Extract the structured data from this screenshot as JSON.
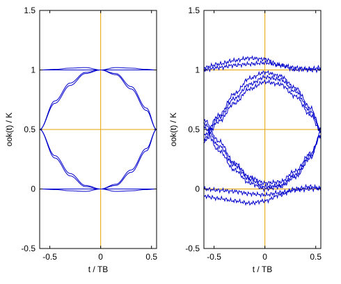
{
  "chart_data": [
    {
      "type": "line",
      "title": "",
      "xlabel": "t / TB",
      "ylabel": "ook(t) / K",
      "xlim": [
        -0.6,
        0.55
      ],
      "ylim": [
        -0.5,
        1.5
      ],
      "xticks": [
        -0.5,
        0,
        0.5
      ],
      "xtick_labels": [
        "-0.5",
        "0",
        "0.5"
      ],
      "yticks": [
        -0.5,
        0,
        0.5,
        1,
        1.5
      ],
      "ytick_labels": [
        "-0.5",
        "0",
        "0.5",
        "1",
        "1.5"
      ],
      "grid": false,
      "reference_lines": {
        "y": [
          0,
          0.5,
          1
        ],
        "x": [
          0
        ]
      },
      "line_color": "#0000cc",
      "reference_color": "#e6a200",
      "series": [
        {
          "x": [
            -0.6,
            -0.45,
            -0.3,
            -0.15,
            0,
            0.15,
            0.3,
            0.45,
            0.55
          ],
          "y": [
            1.0,
            1.005,
            1.015,
            1.02,
            1.0,
            1.02,
            1.015,
            1.005,
            1.0
          ]
        },
        {
          "x": [
            -0.6,
            -0.45,
            -0.3,
            -0.15,
            0,
            0.15,
            0.3,
            0.45,
            0.55
          ],
          "y": [
            1.0,
            1.0,
            1.0,
            1.0,
            1.0,
            1.0,
            1.0,
            1.0,
            1.0
          ]
        },
        {
          "x": [
            -0.6,
            -0.45,
            -0.3,
            -0.15,
            0,
            0.15,
            0.3,
            0.45,
            0.55
          ],
          "y": [
            0.0,
            -0.005,
            -0.015,
            -0.02,
            0.0,
            -0.02,
            -0.015,
            -0.005,
            0.0
          ]
        },
        {
          "x": [
            -0.6,
            -0.45,
            -0.3,
            -0.15,
            0,
            0.15,
            0.3,
            0.45,
            0.55
          ],
          "y": [
            0.0,
            0.0,
            0.0,
            0.0,
            0.0,
            0.0,
            0.0,
            0.0,
            0.0
          ]
        },
        {
          "x": [
            -0.6,
            -0.45,
            -0.3,
            -0.15,
            0,
            0.15,
            0.3,
            0.45,
            0.55
          ],
          "y": [
            0.5,
            0.72,
            0.87,
            0.97,
            1.0,
            0.96,
            0.84,
            0.66,
            0.5
          ]
        },
        {
          "x": [
            -0.6,
            -0.45,
            -0.3,
            -0.15,
            0,
            0.15,
            0.3,
            0.45,
            0.55
          ],
          "y": [
            0.5,
            0.74,
            0.89,
            0.98,
            1.0,
            0.97,
            0.86,
            0.68,
            0.5
          ]
        },
        {
          "x": [
            -0.6,
            -0.45,
            -0.3,
            -0.15,
            0,
            0.15,
            0.3,
            0.45,
            0.55
          ],
          "y": [
            0.5,
            0.28,
            0.13,
            0.03,
            0.0,
            0.04,
            0.16,
            0.34,
            0.5
          ]
        },
        {
          "x": [
            -0.6,
            -0.45,
            -0.3,
            -0.15,
            0,
            0.15,
            0.3,
            0.45,
            0.55
          ],
          "y": [
            0.5,
            0.26,
            0.11,
            0.02,
            0.0,
            0.03,
            0.14,
            0.32,
            0.5
          ]
        }
      ]
    },
    {
      "type": "line",
      "title": "",
      "xlabel": "t / TB",
      "ylabel": "ook(t) / K",
      "xlim": [
        -0.6,
        0.55
      ],
      "ylim": [
        -0.5,
        1.5
      ],
      "xticks": [
        -0.5,
        0,
        0.5
      ],
      "xtick_labels": [
        "-0.5",
        "0",
        "0.5"
      ],
      "yticks": [
        -0.5,
        0,
        0.5,
        1,
        1.5
      ],
      "ytick_labels": [
        "-0.5",
        "0",
        "0.5",
        "1",
        "1.5"
      ],
      "grid": false,
      "reference_lines": {
        "y": [
          0,
          0.5,
          1
        ],
        "x": [
          0
        ]
      },
      "line_color": "#0000cc",
      "reference_color": "#e6a200",
      "series": [
        {
          "x": [
            -0.6,
            -0.45,
            -0.3,
            -0.15,
            0,
            0.15,
            0.3,
            0.45,
            0.55
          ],
          "y": [
            1.02,
            1.05,
            1.08,
            1.1,
            1.09,
            1.04,
            1.0,
            1.01,
            1.02
          ]
        },
        {
          "x": [
            -0.6,
            -0.45,
            -0.3,
            -0.15,
            0,
            0.15,
            0.3,
            0.45,
            0.55
          ],
          "y": [
            1.0,
            1.02,
            1.04,
            1.05,
            1.06,
            1.04,
            1.02,
            1.0,
            1.0
          ]
        },
        {
          "x": [
            -0.6,
            -0.45,
            -0.3,
            -0.15,
            0,
            0.15,
            0.3,
            0.45,
            0.55
          ],
          "y": [
            -0.06,
            -0.08,
            -0.1,
            -0.12,
            -0.1,
            -0.05,
            0.0,
            0.02,
            0.0
          ]
        },
        {
          "x": [
            -0.6,
            -0.45,
            -0.3,
            -0.15,
            0,
            0.15,
            0.3,
            0.45,
            0.55
          ],
          "y": [
            0.0,
            -0.01,
            -0.02,
            -0.04,
            -0.05,
            -0.03,
            -0.01,
            0.0,
            0.01
          ]
        },
        {
          "x": [
            -0.6,
            -0.45,
            -0.3,
            -0.15,
            0,
            0.15,
            0.3,
            0.45,
            0.55
          ],
          "y": [
            0.45,
            0.62,
            0.8,
            0.93,
            0.98,
            0.95,
            0.85,
            0.68,
            0.5
          ]
        },
        {
          "x": [
            -0.6,
            -0.45,
            -0.3,
            -0.15,
            0,
            0.15,
            0.3,
            0.45,
            0.55
          ],
          "y": [
            0.42,
            0.6,
            0.76,
            0.88,
            0.94,
            0.92,
            0.82,
            0.65,
            0.5
          ]
        },
        {
          "x": [
            -0.6,
            -0.45,
            -0.3,
            -0.15,
            0,
            0.15,
            0.3,
            0.45,
            0.55
          ],
          "y": [
            0.4,
            0.57,
            0.72,
            0.84,
            0.9,
            0.88,
            0.78,
            0.62,
            0.48
          ]
        },
        {
          "x": [
            -0.6,
            -0.45,
            -0.3,
            -0.15,
            0,
            0.15,
            0.3,
            0.45,
            0.55
          ],
          "y": [
            0.58,
            0.4,
            0.22,
            0.1,
            0.05,
            0.06,
            0.15,
            0.3,
            0.45
          ]
        },
        {
          "x": [
            -0.6,
            -0.45,
            -0.3,
            -0.15,
            0,
            0.15,
            0.3,
            0.45,
            0.55
          ],
          "y": [
            0.55,
            0.36,
            0.2,
            0.08,
            0.02,
            0.03,
            0.12,
            0.28,
            0.45
          ]
        },
        {
          "x": [
            -0.6,
            -0.45,
            -0.3,
            -0.15,
            0,
            0.15,
            0.3,
            0.45,
            0.55
          ],
          "y": [
            0.52,
            0.32,
            0.16,
            0.05,
            0.0,
            0.02,
            0.1,
            0.26,
            0.48
          ]
        }
      ]
    }
  ]
}
